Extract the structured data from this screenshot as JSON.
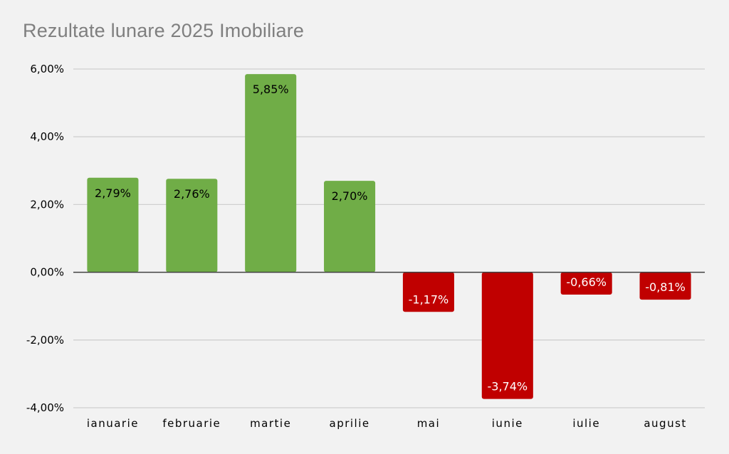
{
  "chart_data": {
    "type": "bar",
    "title": "Rezultate lunare 2025 Imobiliare",
    "categories": [
      "ianuarie",
      "februarie",
      "martie",
      "aprilie",
      "mai",
      "iunie",
      "iulie",
      "august"
    ],
    "values": [
      2.79,
      2.76,
      5.85,
      2.7,
      -1.17,
      -3.74,
      -0.66,
      -0.81
    ],
    "data_labels": [
      "2,79%",
      "2,76%",
      "5,85%",
      "2,70%",
      "-1,17%",
      "-3,74%",
      "-0,66%",
      "-0,81%"
    ],
    "y_ticks": [
      6,
      4,
      2,
      0,
      -2,
      -4
    ],
    "y_tick_labels": [
      "6,00%",
      "4,00%",
      "2,00%",
      "0,00%",
      "-2,00%",
      "-4,00%"
    ],
    "ylim": [
      -4,
      6
    ],
    "xlabel": "",
    "ylabel": "",
    "grid": true,
    "legend": "none",
    "colors": {
      "positive": "#70ad47",
      "negative": "#c00000",
      "positive_label": "#000000",
      "negative_label": "#ffffff",
      "gridline": "#d0d0d0",
      "zero_line": "#404040",
      "title": "#7f7f7f",
      "background": "#f2f2f2"
    }
  }
}
